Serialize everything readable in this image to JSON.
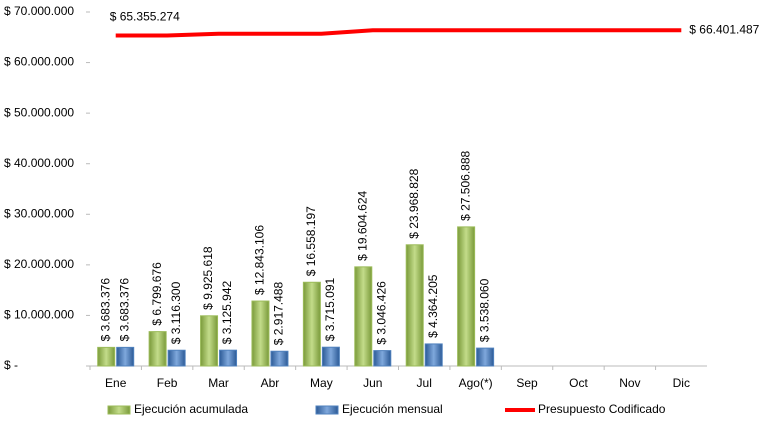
{
  "chart_data": {
    "type": "bar",
    "categories": [
      "Ene",
      "Feb",
      "Mar",
      "Abr",
      "May",
      "Jun",
      "Jul",
      "Ago(*)",
      "Sep",
      "Oct",
      "Nov",
      "Dic"
    ],
    "series": [
      {
        "name": "Ejecución acumulada",
        "color": "#9bbb59",
        "type": "bar",
        "values": [
          3683376,
          6799676,
          9925618,
          12843106,
          16558197,
          19604624,
          23968828,
          27506888,
          null,
          null,
          null,
          null
        ],
        "value_labels": [
          "$ 3.683.376",
          "$ 6.799.676",
          "$ 9.925.618",
          "$ 12.843.106",
          "$ 16.558.197",
          "$ 19.604.624",
          "$ 23.968.828",
          "$ 27.506.888",
          null,
          null,
          null,
          null
        ]
      },
      {
        "name": "Ejecución mensual",
        "color": "#4f81bd",
        "type": "bar",
        "values": [
          3683376,
          3116300,
          3125942,
          2917488,
          3715091,
          3046426,
          4364205,
          3538060,
          null,
          null,
          null,
          null
        ],
        "value_labels": [
          "$ 3.683.376",
          "$ 3.116.300",
          "$ 3.125.942",
          "$ 2.917.488",
          "$ 3.715.091",
          "$ 3.046.426",
          "$ 4.364.205",
          "$ 3.538.060",
          null,
          null,
          null,
          null
        ]
      },
      {
        "name": "Presupuesto Codificado",
        "color": "#ff0000",
        "type": "line",
        "values": [
          65355274,
          65355274,
          65700000,
          65700000,
          65700000,
          66401487,
          66401487,
          66401487,
          66401487,
          66401487,
          66401487,
          66401487
        ],
        "value_labels": [
          "$ 65.355.274",
          null,
          null,
          null,
          null,
          null,
          null,
          null,
          null,
          null,
          null,
          "$ 66.401.487"
        ]
      }
    ],
    "ylim": [
      0,
      70000000
    ],
    "yticks": [
      {
        "value": 0,
        "label": "$ -"
      },
      {
        "value": 10000000,
        "label": "$ 10.000.000"
      },
      {
        "value": 20000000,
        "label": "$ 20.000.000"
      },
      {
        "value": 30000000,
        "label": "$ 30.000.000"
      },
      {
        "value": 40000000,
        "label": "$ 40.000.000"
      },
      {
        "value": 50000000,
        "label": "$ 50.000.000"
      },
      {
        "value": 60000000,
        "label": "$ 60.000.000"
      },
      {
        "value": 70000000,
        "label": "$ 70.000.000"
      }
    ],
    "legend": "bottom"
  }
}
